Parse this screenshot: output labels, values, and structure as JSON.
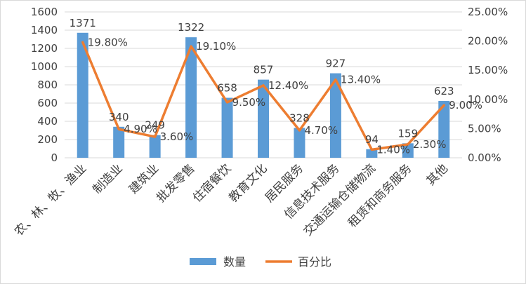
{
  "chart_data": {
    "type": "bar+line",
    "categories": [
      "农、林、牧、渔业",
      "制造业",
      "建筑业",
      "批发零售",
      "住宿餐饮",
      "教育文化",
      "居民服务",
      "信息技术服务",
      "交通运输仓储物流",
      "租赁和商务服务",
      "其他"
    ],
    "series": [
      {
        "name": "数量",
        "type": "bar",
        "axis": "left",
        "color": "#5b9bd5",
        "values": [
          1371,
          340,
          249,
          1322,
          658,
          857,
          328,
          927,
          94,
          159,
          623
        ],
        "labels": [
          "1371",
          "340",
          "249",
          "1322",
          "658",
          "857",
          "328",
          "927",
          "94",
          "159",
          "623"
        ]
      },
      {
        "name": "百分比",
        "type": "line",
        "axis": "right",
        "color": "#ed7d31",
        "values": [
          19.8,
          4.9,
          3.6,
          19.1,
          9.5,
          12.4,
          4.7,
          13.4,
          1.4,
          2.3,
          9.0
        ],
        "labels": [
          "19.80%",
          "4.90%",
          "3.60%",
          "19.10%",
          "9.50%",
          "12.40%",
          "4.70%",
          "13.40%",
          "1.40%",
          "2.30%",
          "9.00%"
        ]
      }
    ],
    "left_axis": {
      "ylim": [
        0,
        1600
      ],
      "ticks": [
        "0",
        "200",
        "400",
        "600",
        "800",
        "1000",
        "1200",
        "1400",
        "1600"
      ]
    },
    "right_axis": {
      "ylim": [
        0,
        25
      ],
      "ticks": [
        "0.00%",
        "5.00%",
        "10.00%",
        "15.00%",
        "20.00%",
        "25.00%"
      ]
    },
    "grid": true,
    "legend_position": "bottom"
  }
}
